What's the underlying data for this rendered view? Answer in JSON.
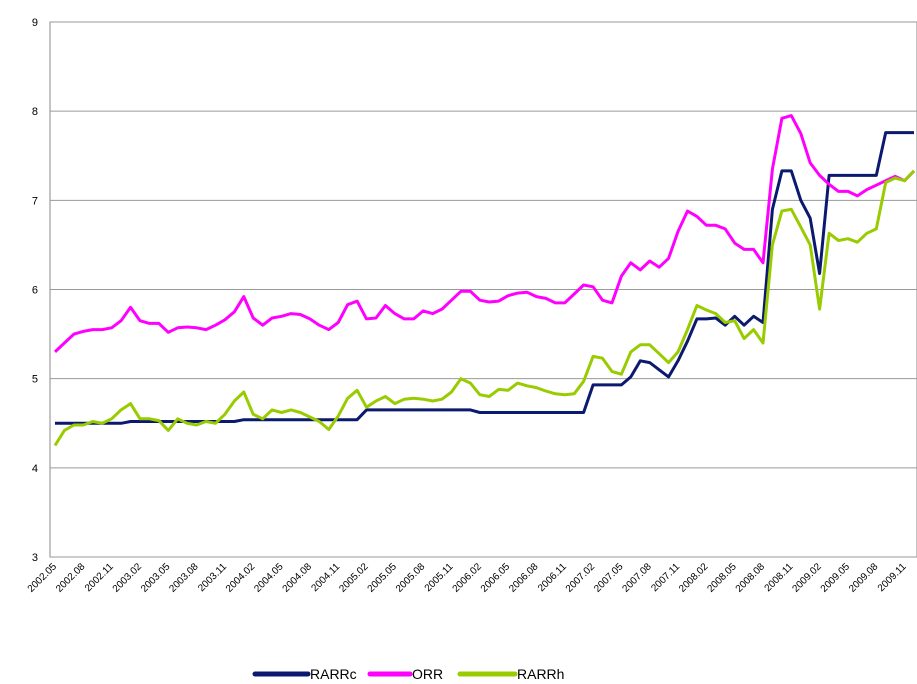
{
  "chart_data": {
    "type": "line",
    "categories": [
      "2002.05",
      null,
      null,
      "2002.08",
      null,
      null,
      "2002.11",
      null,
      null,
      "2003.02",
      null,
      null,
      "2003.05",
      null,
      null,
      "2003.08",
      null,
      null,
      "2003.11",
      null,
      null,
      "2004.02",
      null,
      null,
      "2004.05",
      null,
      null,
      "2004.08",
      null,
      null,
      "2004.11",
      null,
      null,
      "2005.02",
      null,
      null,
      "2005.05",
      null,
      null,
      "2005.08",
      null,
      null,
      "2005.11",
      null,
      null,
      "2006.02",
      null,
      null,
      "2006.05",
      null,
      null,
      "2006.08",
      null,
      null,
      "2006.11",
      null,
      null,
      "2007.02",
      null,
      null,
      "2007.05",
      null,
      null,
      "2007.08",
      null,
      null,
      "2007.11",
      null,
      null,
      "2008.02",
      null,
      null,
      "2008.05",
      null,
      null,
      "2008.08",
      null,
      null,
      "2008.11",
      null,
      null,
      "2009.02",
      null,
      null,
      "2009.05",
      null,
      null,
      "2009.08",
      null,
      null,
      "2009.11",
      null
    ],
    "series": [
      {
        "name": "RARRc",
        "color": "#0b1a6e",
        "values": [
          4.5,
          4.5,
          4.5,
          4.5,
          4.5,
          4.5,
          4.5,
          4.5,
          4.52,
          4.52,
          4.52,
          4.52,
          4.52,
          4.52,
          4.52,
          4.52,
          4.52,
          4.52,
          4.52,
          4.52,
          4.54,
          4.54,
          4.54,
          4.54,
          4.54,
          4.54,
          4.54,
          4.54,
          4.54,
          4.54,
          4.54,
          4.54,
          4.54,
          4.65,
          4.65,
          4.65,
          4.65,
          4.65,
          4.65,
          4.65,
          4.65,
          4.65,
          4.65,
          4.65,
          4.65,
          4.62,
          4.62,
          4.62,
          4.62,
          4.62,
          4.62,
          4.62,
          4.62,
          4.62,
          4.62,
          4.62,
          4.62,
          4.93,
          4.93,
          4.93,
          4.93,
          5.02,
          5.2,
          5.18,
          5.1,
          5.02,
          5.2,
          5.42,
          5.67,
          5.67,
          5.68,
          5.6,
          5.7,
          5.6,
          5.7,
          5.63,
          6.9,
          7.33,
          7.33,
          7.0,
          6.8,
          6.18,
          7.28,
          7.28,
          7.28,
          7.28,
          7.28,
          7.28,
          7.76,
          7.76,
          7.76,
          7.76
        ]
      },
      {
        "name": "ORR",
        "color": "#ff00ff",
        "values": [
          5.3,
          5.4,
          5.5,
          5.53,
          5.55,
          5.55,
          5.57,
          5.65,
          5.8,
          5.65,
          5.62,
          5.62,
          5.52,
          5.57,
          5.58,
          5.57,
          5.55,
          5.6,
          5.66,
          5.75,
          5.92,
          5.68,
          5.6,
          5.68,
          5.7,
          5.73,
          5.72,
          5.67,
          5.6,
          5.55,
          5.63,
          5.83,
          5.87,
          5.67,
          5.68,
          5.82,
          5.73,
          5.67,
          5.67,
          5.76,
          5.73,
          5.78,
          5.88,
          5.98,
          5.98,
          5.88,
          5.86,
          5.87,
          5.93,
          5.96,
          5.97,
          5.92,
          5.9,
          5.85,
          5.85,
          5.95,
          6.05,
          6.03,
          5.88,
          5.85,
          6.15,
          6.3,
          6.22,
          6.32,
          6.25,
          6.35,
          6.65,
          6.88,
          6.82,
          6.72,
          6.72,
          6.68,
          6.52,
          6.45,
          6.45,
          6.3,
          7.35,
          7.92,
          7.95,
          7.75,
          7.42,
          7.28,
          7.18,
          7.1,
          7.1,
          7.05,
          7.12,
          7.17,
          7.22,
          7.27,
          7.22,
          7.33
        ]
      },
      {
        "name": "RARRh",
        "color": "#99cc00",
        "values": [
          4.25,
          4.42,
          4.48,
          4.48,
          4.52,
          4.5,
          4.55,
          4.65,
          4.72,
          4.55,
          4.55,
          4.53,
          4.42,
          4.55,
          4.5,
          4.48,
          4.52,
          4.5,
          4.6,
          4.75,
          4.85,
          4.6,
          4.55,
          4.65,
          4.62,
          4.65,
          4.62,
          4.57,
          4.52,
          4.43,
          4.58,
          4.78,
          4.87,
          4.68,
          4.75,
          4.8,
          4.72,
          4.77,
          4.78,
          4.77,
          4.75,
          4.77,
          4.85,
          5.0,
          4.95,
          4.82,
          4.8,
          4.88,
          4.87,
          4.95,
          4.92,
          4.9,
          4.86,
          4.83,
          4.82,
          4.83,
          4.97,
          5.25,
          5.23,
          5.08,
          5.05,
          5.3,
          5.38,
          5.38,
          5.28,
          5.18,
          5.3,
          5.55,
          5.82,
          5.77,
          5.73,
          5.63,
          5.65,
          5.45,
          5.55,
          5.4,
          6.5,
          6.88,
          6.9,
          6.7,
          6.5,
          5.78,
          6.63,
          6.55,
          6.57,
          6.53,
          6.63,
          6.68,
          7.2,
          7.25,
          7.22,
          7.33
        ]
      }
    ],
    "ylim": [
      3,
      9
    ],
    "yticks": [
      3,
      4,
      5,
      6,
      7,
      8,
      9
    ],
    "grid": true,
    "legend": "bottom"
  }
}
